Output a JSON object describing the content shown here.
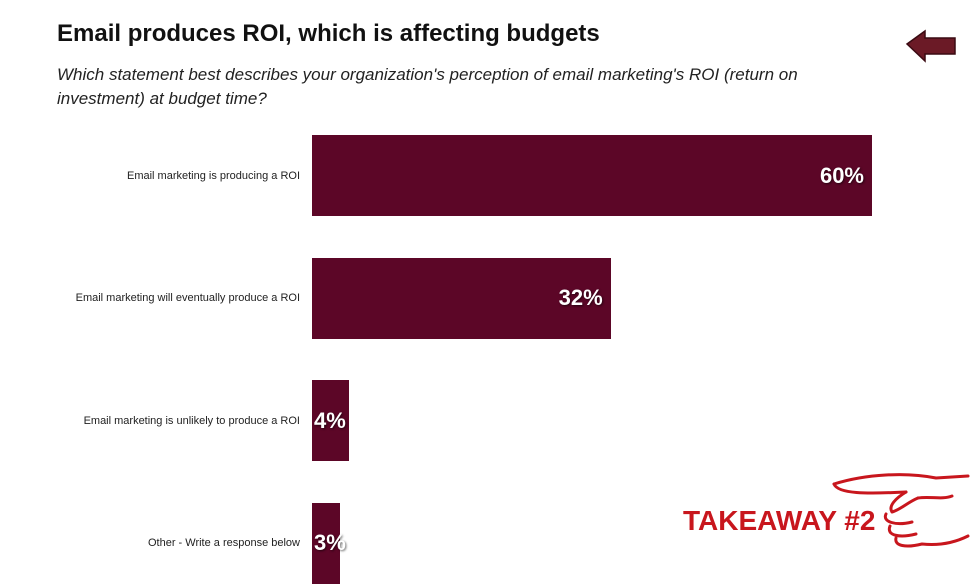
{
  "chart_data": {
    "type": "bar",
    "orientation": "horizontal",
    "title": "Email produces ROI, which is affecting budgets",
    "subtitle": "Which statement best describes your organization's perception of email marketing's ROI (return on investment) at budget time?",
    "categories": [
      "Email marketing is producing a ROI",
      "Email marketing will eventually produce a ROI",
      "Email marketing is unlikely to produce a ROI",
      "Other - Write a response below"
    ],
    "values": [
      60,
      32,
      4,
      3
    ],
    "value_labels": [
      "60%",
      "32%",
      "4%",
      "3%"
    ],
    "color": "#5c0627",
    "annotation": "TAKEAWAY #2"
  }
}
